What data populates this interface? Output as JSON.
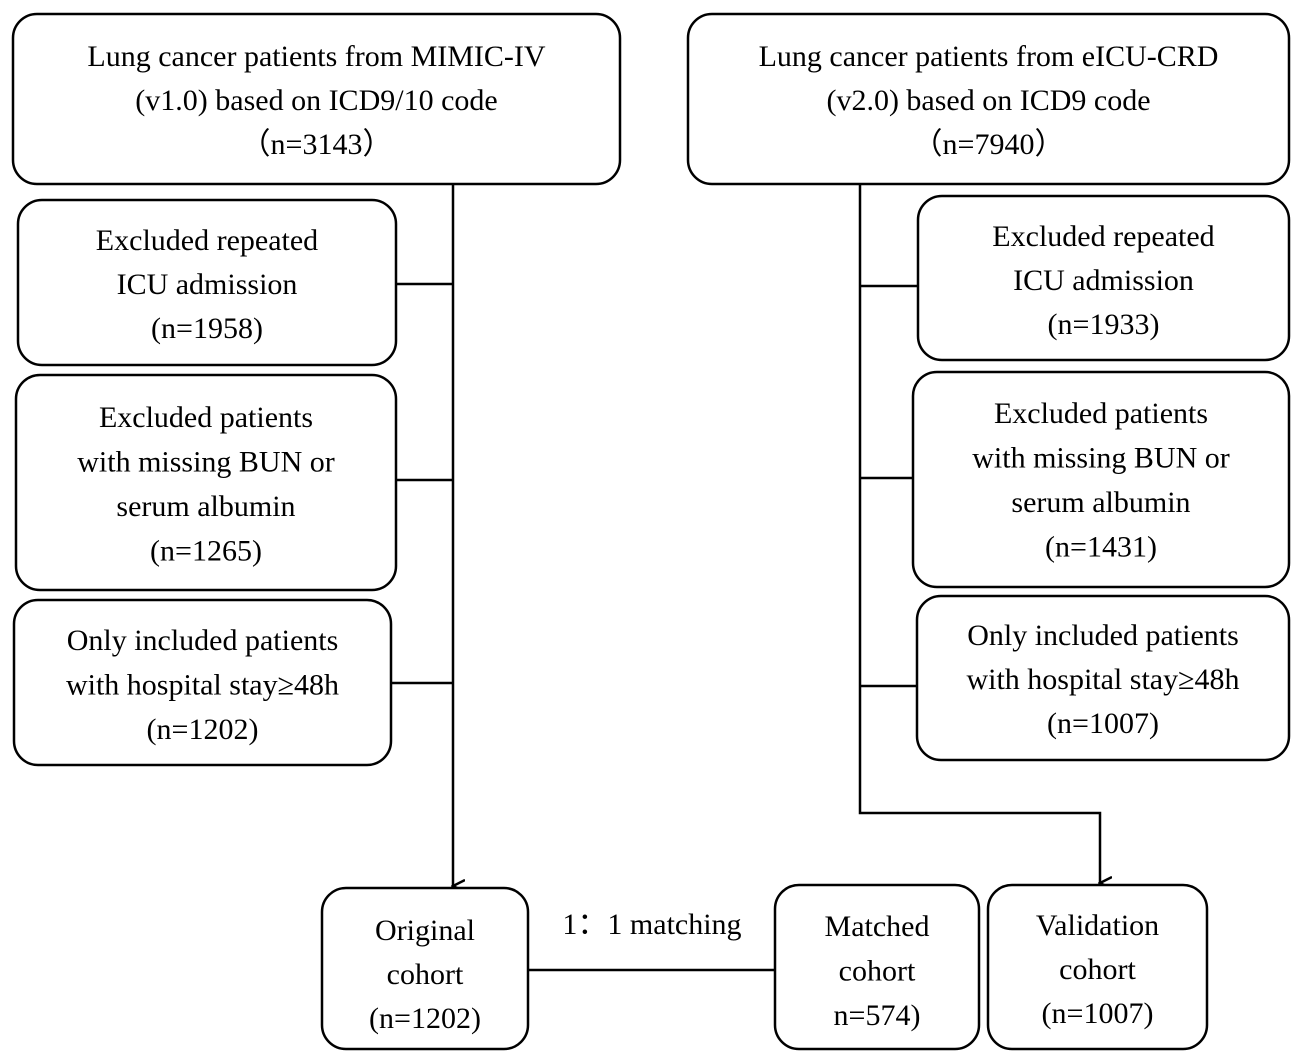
{
  "nodes": [
    {
      "lines": [
        "Lung cancer patients from MIMIC-IV",
        "(v1.0) based on ICD9/10 code",
        "（n=3143）"
      ]
    },
    {
      "lines": [
        "Lung cancer patients from eICU-CRD",
        "(v2.0) based on ICD9 code",
        "（n=7940）"
      ]
    },
    {
      "lines": [
        "Excluded repeated",
        "ICU admission",
        "(n=1958)"
      ]
    },
    {
      "lines": [
        "Excluded patients",
        "with missing BUN or",
        "serum albumin",
        "(n=1265)"
      ]
    },
    {
      "lines": [
        "Only included patients",
        "with hospital stay≥48h",
        "(n=1202)"
      ]
    },
    {
      "lines": [
        "Excluded repeated",
        "ICU admission",
        "(n=1933)"
      ]
    },
    {
      "lines": [
        "Excluded patients",
        "with missing BUN or",
        "serum albumin",
        "(n=1431)"
      ]
    },
    {
      "lines": [
        "Only included patients",
        "with hospital stay≥48h",
        "(n=1007)"
      ]
    },
    {
      "lines": [
        "Original",
        "cohort",
        "(n=1202)"
      ]
    },
    {
      "lines": [
        "Matched",
        "cohort",
        "n=574)"
      ]
    },
    {
      "lines": [
        "Validation",
        "cohort",
        "(n=1007)"
      ]
    }
  ],
  "edge_label": "1：1 matching"
}
